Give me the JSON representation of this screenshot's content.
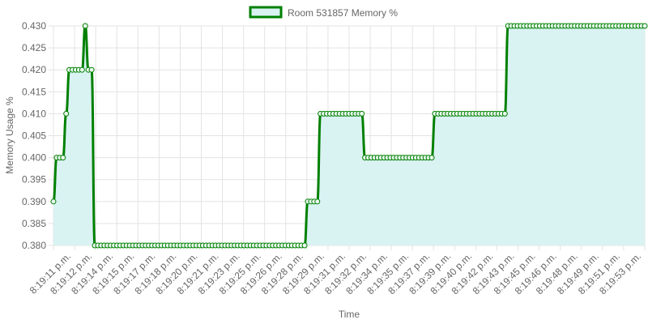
{
  "colors": {
    "line": "#008000",
    "fill": "#d9f2f2",
    "point_fill": "#eaf7ef",
    "grid": "#e3e3e3",
    "text": "#666666"
  },
  "chart_data": {
    "type": "line",
    "legend": {
      "position": "top",
      "label": "Room 531857 Memory %"
    },
    "xlabel": "Time",
    "ylabel": "Memory Usage %",
    "ylim": [
      0.38,
      0.43
    ],
    "yticks": [
      "0.380",
      "0.385",
      "0.390",
      "0.395",
      "0.400",
      "0.405",
      "0.410",
      "0.415",
      "0.420",
      "0.425",
      "0.430"
    ],
    "grid": true,
    "x_tick_labels": [
      "8:19:11 p.m.",
      "8:19:12 p.m.",
      "8:19:14 p.m.",
      "8:19:15 p.m.",
      "8:19:17 p.m.",
      "8:19:18 p.m.",
      "8:19:20 p.m.",
      "8:19:21 p.m.",
      "8:19:23 p.m.",
      "8:19:25 p.m.",
      "8:19:26 p.m.",
      "8:19:28 p.m.",
      "8:19:29 p.m.",
      "8:19:31 p.m.",
      "8:19:32 p.m.",
      "8:19:34 p.m.",
      "8:19:35 p.m.",
      "8:19:37 p.m.",
      "8:19:39 p.m.",
      "8:19:40 p.m.",
      "8:19:42 p.m.",
      "8:19:43 p.m.",
      "8:19:45 p.m.",
      "8:19:46 p.m.",
      "8:19:48 p.m.",
      "8:19:49 p.m.",
      "8:19:51 p.m.",
      "8:19:53 p.m."
    ],
    "series": [
      {
        "name": "Room 531857 Memory %",
        "values": [
          0.39,
          0.4,
          0.4,
          0.4,
          0.41,
          0.42,
          0.42,
          0.42,
          0.42,
          0.42,
          0.43,
          0.42,
          0.42,
          0.38,
          0.38,
          0.38,
          0.38,
          0.38,
          0.38,
          0.38,
          0.38,
          0.38,
          0.38,
          0.38,
          0.38,
          0.38,
          0.38,
          0.38,
          0.38,
          0.38,
          0.38,
          0.38,
          0.38,
          0.38,
          0.38,
          0.38,
          0.38,
          0.38,
          0.38,
          0.38,
          0.38,
          0.38,
          0.38,
          0.38,
          0.38,
          0.38,
          0.38,
          0.38,
          0.38,
          0.38,
          0.38,
          0.38,
          0.38,
          0.38,
          0.38,
          0.38,
          0.38,
          0.38,
          0.38,
          0.38,
          0.38,
          0.38,
          0.38,
          0.38,
          0.38,
          0.38,
          0.38,
          0.38,
          0.38,
          0.38,
          0.38,
          0.38,
          0.38,
          0.38,
          0.38,
          0.38,
          0.38,
          0.38,
          0.38,
          0.38,
          0.39,
          0.39,
          0.39,
          0.39,
          0.41,
          0.41,
          0.41,
          0.41,
          0.41,
          0.41,
          0.41,
          0.41,
          0.41,
          0.41,
          0.41,
          0.41,
          0.41,
          0.41,
          0.4,
          0.4,
          0.4,
          0.4,
          0.4,
          0.4,
          0.4,
          0.4,
          0.4,
          0.4,
          0.4,
          0.4,
          0.4,
          0.4,
          0.4,
          0.4,
          0.4,
          0.4,
          0.4,
          0.4,
          0.4,
          0.4,
          0.41,
          0.41,
          0.41,
          0.41,
          0.41,
          0.41,
          0.41,
          0.41,
          0.41,
          0.41,
          0.41,
          0.41,
          0.41,
          0.41,
          0.41,
          0.41,
          0.41,
          0.41,
          0.41,
          0.41,
          0.41,
          0.41,
          0.41,
          0.43,
          0.43,
          0.43,
          0.43,
          0.43,
          0.43,
          0.43,
          0.43,
          0.43,
          0.43,
          0.43,
          0.43,
          0.43,
          0.43,
          0.43,
          0.43,
          0.43,
          0.43,
          0.43,
          0.43,
          0.43,
          0.43,
          0.43,
          0.43,
          0.43,
          0.43,
          0.43,
          0.43,
          0.43,
          0.43,
          0.43,
          0.43,
          0.43,
          0.43,
          0.43,
          0.43,
          0.43,
          0.43,
          0.43,
          0.43,
          0.43,
          0.43,
          0.43,
          0.43
        ]
      }
    ]
  }
}
